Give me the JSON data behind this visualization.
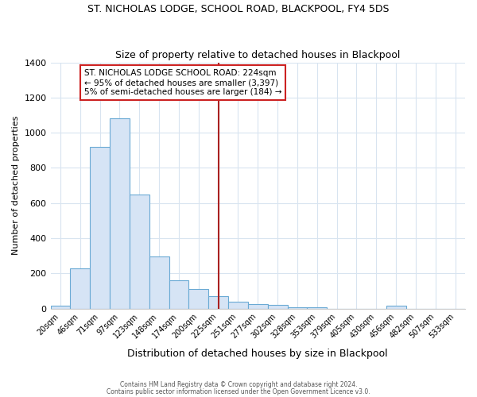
{
  "title": "ST. NICHOLAS LODGE, SCHOOL ROAD, BLACKPOOL, FY4 5DS",
  "subtitle": "Size of property relative to detached houses in Blackpool",
  "xlabel": "Distribution of detached houses by size in Blackpool",
  "ylabel": "Number of detached properties",
  "categories": [
    "20sqm",
    "46sqm",
    "71sqm",
    "97sqm",
    "123sqm",
    "148sqm",
    "174sqm",
    "200sqm",
    "225sqm",
    "251sqm",
    "277sqm",
    "302sqm",
    "328sqm",
    "353sqm",
    "379sqm",
    "405sqm",
    "430sqm",
    "456sqm",
    "482sqm",
    "507sqm",
    "533sqm"
  ],
  "values": [
    15,
    230,
    920,
    1080,
    650,
    295,
    160,
    110,
    70,
    40,
    25,
    20,
    5,
    5,
    0,
    0,
    0,
    15,
    0,
    0,
    0
  ],
  "bar_color": "#d6e4f5",
  "bar_edge_color": "#6aaad4",
  "vline_color": "#aa2222",
  "vline_pos": 8,
  "annotation_lines": [
    "ST. NICHOLAS LODGE SCHOOL ROAD: 224sqm",
    "← 95% of detached houses are smaller (3,397)",
    "5% of semi-detached houses are larger (184) →"
  ],
  "ylim": [
    0,
    1400
  ],
  "yticks": [
    0,
    200,
    400,
    600,
    800,
    1000,
    1200,
    1400
  ],
  "bg_color": "#ffffff",
  "grid_color": "#d8e4f0",
  "footer1": "Contains HM Land Registry data © Crown copyright and database right 2024.",
  "footer2": "Contains public sector information licensed under the Open Government Licence v3.0."
}
